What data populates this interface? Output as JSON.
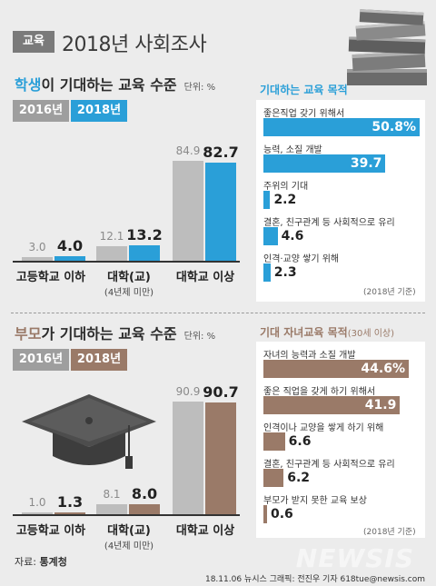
{
  "header": {
    "badge": "교육",
    "title": "2018년 사회조사"
  },
  "colors": {
    "blue": "#2a9fd8",
    "brown": "#9a7a68",
    "gray": "#bdbdbd",
    "dark": "#5a5a5a"
  },
  "footer": {
    "source_label": "자료: ",
    "source_value": "통계청",
    "credit": "18.11.06 뉴시스 그래픽: 전진우 기자 618tue@newsis.com",
    "watermark": "NEWSIS"
  },
  "chart_data": [
    {
      "type": "bar",
      "title_highlight": "학생",
      "title_rest": "이 기대하는 교육 수준",
      "unit": "단위: %",
      "series": [
        {
          "name": "2016년",
          "values": [
            3.0,
            12.1,
            84.9
          ]
        },
        {
          "name": "2018년",
          "values": [
            4.0,
            13.2,
            82.7
          ]
        }
      ],
      "categories": [
        "고등학교 이하",
        "대학(교)",
        "대학교 이상"
      ],
      "category_subs": [
        "",
        "(4년제 미만)",
        ""
      ],
      "ylim": [
        0,
        100
      ]
    },
    {
      "type": "bar",
      "title": "기대하는 교육 목적",
      "orientation": "horizontal",
      "categories": [
        "좋은직업 갖기 위해서",
        "능력, 소질 개발",
        "주위의 기대",
        "결혼, 친구관계 등 사회적으로 유리",
        "인격·교양 쌓기 위해"
      ],
      "values": [
        50.8,
        39.7,
        2.2,
        4.6,
        2.3
      ],
      "value_labels": [
        "50.8%",
        "39.7",
        "2.2",
        "4.6",
        "2.3"
      ],
      "note": "(2018년 기준)"
    },
    {
      "type": "bar",
      "title_highlight": "부모",
      "title_rest": "가 기대하는 교육 수준",
      "unit": "단위: %",
      "series": [
        {
          "name": "2016년",
          "values": [
            1.0,
            8.1,
            90.9
          ]
        },
        {
          "name": "2018년",
          "values": [
            1.3,
            8.0,
            90.7
          ]
        }
      ],
      "categories": [
        "고등학교 이하",
        "대학(교)",
        "대학교 이상"
      ],
      "category_subs": [
        "",
        "(4년제 미만)",
        ""
      ],
      "ylim": [
        0,
        100
      ]
    },
    {
      "type": "bar",
      "title": "기대 자녀교육 목적",
      "title_sub": "(30세 이상)",
      "orientation": "horizontal",
      "categories": [
        "자녀의 능력과 소질 개발",
        "좋은 직업을 갖게 하기 위해서",
        "인격이나 교양을 쌓게 하기 위해",
        "결혼, 친구관계 등 사회적으로 유리",
        "부모가 받지 못한 교육 보상"
      ],
      "values": [
        44.6,
        41.9,
        6.6,
        6.2,
        0.6
      ],
      "value_labels": [
        "44.6%",
        "41.9",
        "6.6",
        "6.2",
        "0.6"
      ],
      "note": "(2018년 기준)"
    }
  ]
}
